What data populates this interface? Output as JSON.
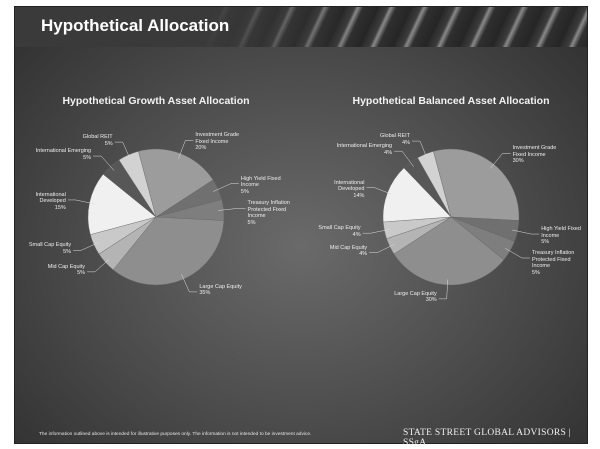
{
  "title": "Hypothetical Allocation",
  "chart_data": [
    {
      "type": "pie",
      "title": "Hypothetical Growth Asset Allocation",
      "categories": [
        "Investment Grade Fixed Income",
        "High Yield Fixed Income",
        "Treasury Inflation Protected Fixed Income",
        "Large Cap Equity",
        "Mid Cap Equity",
        "Small Cap Equity",
        "International Developed",
        "International Emerging",
        "Global REIT"
      ],
      "values": [
        20,
        5,
        5,
        35,
        5,
        5,
        15,
        5,
        5
      ],
      "value_labels": [
        "20%",
        "5%",
        "5%",
        "35%",
        "5%",
        "5%",
        "15%",
        "5%",
        "5%"
      ],
      "colors": [
        "#9c9c9c",
        "#707070",
        "#7e7e7e",
        "#8e8e8e",
        "#b4b4b4",
        "#c9c9c9",
        "#f0f0f0",
        "#575757",
        "#d2d2d2"
      ]
    },
    {
      "type": "pie",
      "title": "Hypothetical Balanced Asset Allocation",
      "categories": [
        "Investment Grade Fixed Income",
        "High Yield Fixed Income",
        "Treasury Inflation Protected Fixed Income",
        "Large Cap Equity",
        "Mid Cap Equity",
        "Small Cap Equity",
        "International Developed",
        "International Emerging",
        "Global REIT"
      ],
      "values": [
        30,
        5,
        5,
        30,
        4,
        4,
        14,
        4,
        4
      ],
      "value_labels": [
        "30%",
        "5%",
        "5%",
        "30%",
        "4%",
        "4%",
        "14%",
        "4%",
        "4%"
      ],
      "colors": [
        "#9c9c9c",
        "#707070",
        "#7e7e7e",
        "#8e8e8e",
        "#b4b4b4",
        "#c9c9c9",
        "#f0f0f0",
        "#575757",
        "#d2d2d2"
      ]
    }
  ],
  "footer": {
    "disclaimer": "The information outlined above is intended for illustrative purposes only. The information is not intended to be investment advice.",
    "logo": "STATE STREET GLOBAL ADVISORS | SSgA."
  }
}
